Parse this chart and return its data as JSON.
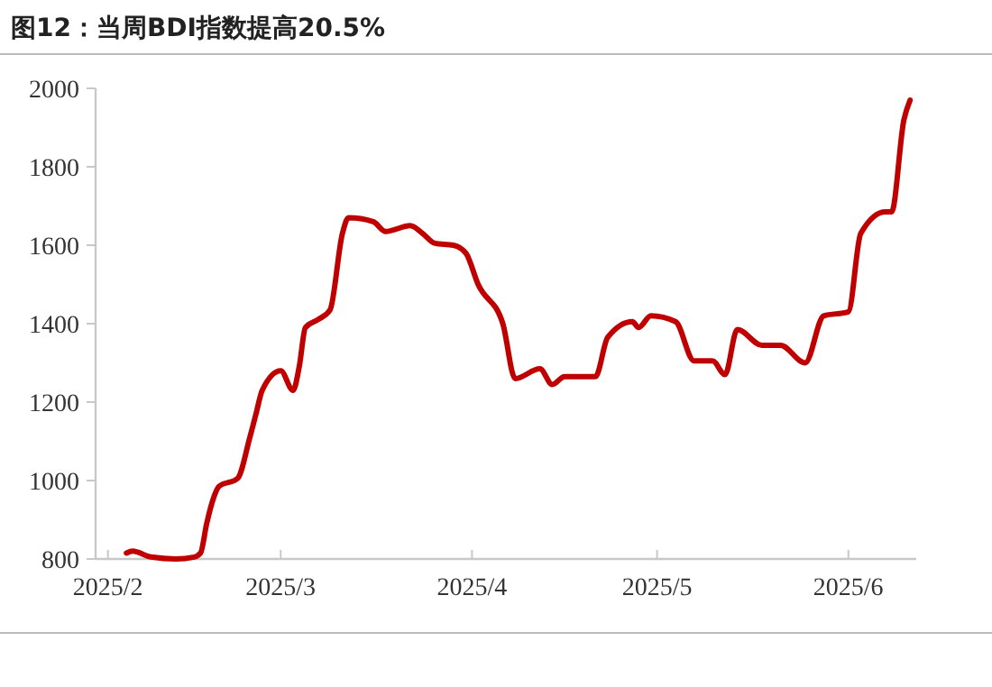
{
  "chart_data": {
    "type": "line",
    "title": "图12：当周BDI指数提高20.5%",
    "x": [
      "2025-02-04",
      "2025-02-05",
      "2025-02-08",
      "2025-02-12",
      "2025-02-15",
      "2025-02-16",
      "2025-02-17",
      "2025-02-18",
      "2025-02-19",
      "2025-02-22",
      "2025-02-24",
      "2025-02-25",
      "2025-02-26",
      "2025-03-01",
      "2025-03-03",
      "2025-03-04",
      "2025-03-05",
      "2025-03-07",
      "2025-03-09",
      "2025-03-11",
      "2025-03-12",
      "2025-03-16",
      "2025-03-18",
      "2025-03-22",
      "2025-03-24",
      "2025-03-26",
      "2025-03-29",
      "2025-03-31",
      "2025-04-02",
      "2025-04-06",
      "2025-04-08",
      "2025-04-12",
      "2025-04-14",
      "2025-04-16",
      "2025-04-21",
      "2025-04-23",
      "2025-04-27",
      "2025-04-28",
      "2025-04-30",
      "2025-05-04",
      "2025-05-07",
      "2025-05-10",
      "2025-05-12",
      "2025-05-14",
      "2025-05-18",
      "2025-05-21",
      "2025-05-25",
      "2025-05-28",
      "2025-06-01",
      "2025-06-03",
      "2025-06-07",
      "2025-06-08",
      "2025-06-10",
      "2025-06-11"
    ],
    "series": [
      {
        "color": "#c00000",
        "values": [
          815,
          820,
          805,
          800,
          805,
          815,
          890,
          950,
          985,
          1005,
          1110,
          1170,
          1230,
          1280,
          1230,
          1290,
          1390,
          1410,
          1435,
          1630,
          1670,
          1660,
          1635,
          1650,
          1630,
          1605,
          1600,
          1580,
          1500,
          1400,
          1260,
          1285,
          1245,
          1265,
          1265,
          1365,
          1405,
          1390,
          1420,
          1405,
          1305,
          1305,
          1270,
          1385,
          1345,
          1345,
          1300,
          1420,
          1430,
          1630,
          1685,
          1685,
          1920,
          1970
        ]
      }
    ],
    "xlim": [
      "2025-01-30",
      "2025-06-12"
    ],
    "xticks": [
      {
        "value": "2025-02-01",
        "label": "2025/2"
      },
      {
        "value": "2025-03-01",
        "label": "2025/3"
      },
      {
        "value": "2025-04-01",
        "label": "2025/4"
      },
      {
        "value": "2025-05-01",
        "label": "2025/5"
      },
      {
        "value": "2025-06-01",
        "label": "2025/6"
      }
    ],
    "ylim": [
      800,
      2000
    ],
    "yticks": [
      800,
      1000,
      1200,
      1400,
      1600,
      1800,
      2000
    ],
    "grid": false,
    "marker": "none",
    "line_style": "solid"
  }
}
